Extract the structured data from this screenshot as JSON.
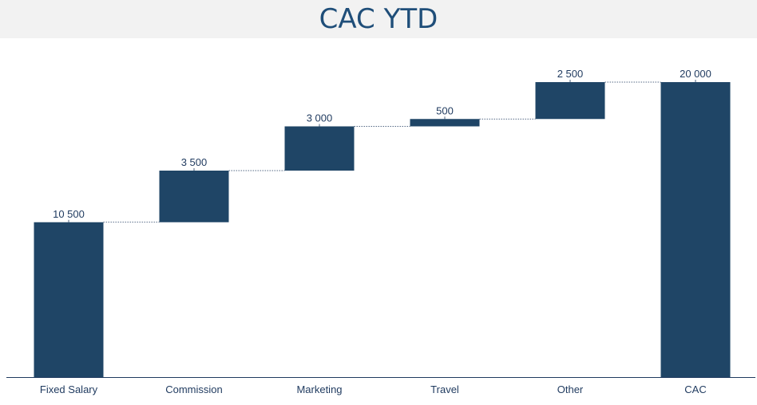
{
  "chart_data": {
    "type": "bar",
    "subtype": "waterfall",
    "title": "CAC YTD",
    "categories": [
      "Fixed Salary",
      "Commission",
      "Marketing",
      "Travel",
      "Other",
      "CAC"
    ],
    "values": [
      10500,
      3500,
      3000,
      500,
      2500,
      20000
    ],
    "value_labels": [
      "10 500",
      "3 500",
      "3 000",
      "500",
      "2 500",
      "20 000"
    ],
    "total_index": 5,
    "ylim": [
      0,
      20000
    ],
    "grid": false,
    "legend": "none",
    "colors": {
      "bar": "#1f4566",
      "title": "#1f4e79",
      "title_band": "#f2f2f2",
      "axis": "#1f3a5f",
      "connector": "#1f3a5f"
    }
  }
}
